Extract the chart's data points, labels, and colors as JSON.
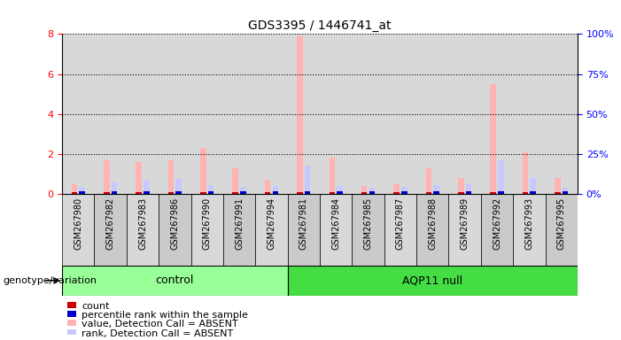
{
  "title": "GDS3395 / 1446741_at",
  "samples": [
    "GSM267980",
    "GSM267982",
    "GSM267983",
    "GSM267986",
    "GSM267990",
    "GSM267991",
    "GSM267994",
    "GSM267981",
    "GSM267984",
    "GSM267985",
    "GSM267987",
    "GSM267988",
    "GSM267989",
    "GSM267992",
    "GSM267993",
    "GSM267995"
  ],
  "groups": [
    "control",
    "control",
    "control",
    "control",
    "control",
    "control",
    "control",
    "AQP11 null",
    "AQP11 null",
    "AQP11 null",
    "AQP11 null",
    "AQP11 null",
    "AQP11 null",
    "AQP11 null",
    "AQP11 null",
    "AQP11 null"
  ],
  "control_count": 7,
  "aqp11_count": 9,
  "value_absent": [
    0.5,
    1.7,
    1.6,
    1.7,
    2.3,
    1.3,
    0.7,
    7.9,
    1.8,
    0.4,
    0.5,
    1.3,
    0.8,
    5.5,
    2.1,
    0.8
  ],
  "rank_absent": [
    0.35,
    0.55,
    0.65,
    0.75,
    0.45,
    0.35,
    0.4,
    1.4,
    0.4,
    0.3,
    0.35,
    0.45,
    0.5,
    1.7,
    0.8,
    0.3
  ],
  "count_val": [
    0.08,
    0.08,
    0.08,
    0.08,
    0.08,
    0.08,
    0.08,
    0.08,
    0.08,
    0.08,
    0.08,
    0.08,
    0.08,
    0.08,
    0.08,
    0.08
  ],
  "pct_rank_val": [
    0.12,
    0.12,
    0.12,
    0.12,
    0.12,
    0.12,
    0.12,
    0.12,
    0.12,
    0.12,
    0.12,
    0.12,
    0.12,
    0.12,
    0.12,
    0.12
  ],
  "color_value_absent": "#ffb3b3",
  "color_rank_absent": "#c8c8ff",
  "color_count": "#cc0000",
  "color_pct_rank": "#0000cc",
  "ylim": [
    0,
    8
  ],
  "yticks_left": [
    0,
    2,
    4,
    6,
    8
  ],
  "yticks_right": [
    0,
    25,
    50,
    75,
    100
  ],
  "plot_bg": "#e8e8e8",
  "col_bg": "#d0d0d0",
  "col_bg_alt": "#c0c0c0",
  "group_color_control": "#99ff99",
  "group_color_aqp": "#44dd44",
  "legend_items": [
    {
      "color": "#cc0000",
      "label": "count"
    },
    {
      "color": "#0000cc",
      "label": "percentile rank within the sample"
    },
    {
      "color": "#ffb3b3",
      "label": "value, Detection Call = ABSENT"
    },
    {
      "color": "#c8c8ff",
      "label": "rank, Detection Call = ABSENT"
    }
  ]
}
